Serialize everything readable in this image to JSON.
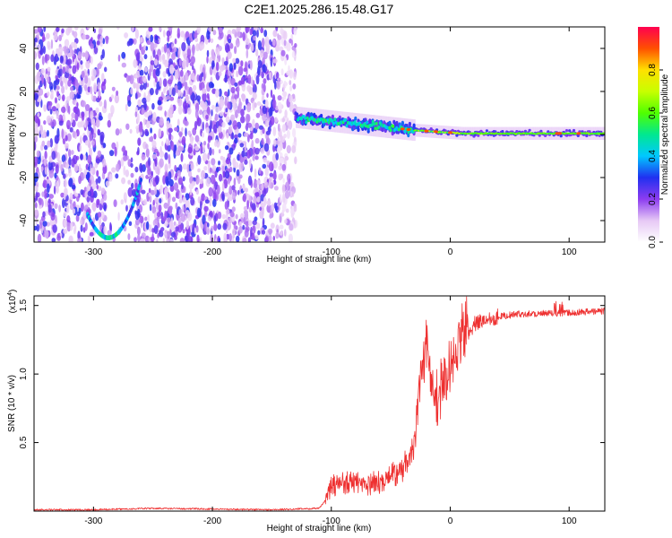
{
  "figure": {
    "title": "C2E1.2025.286.15.48.G17"
  },
  "chart_data": [
    {
      "type": "heatmap",
      "xlabel": "Height of straight line (km)",
      "ylabel": "Frequency (Hz)",
      "xlim": [
        -350,
        130
      ],
      "ylim": [
        -50,
        50
      ],
      "xticks": [
        -300,
        -200,
        -100,
        0,
        100
      ],
      "yticks": [
        -40,
        -20,
        0,
        20,
        40
      ],
      "colorbar": {
        "label": "Normalized spectral amplitude",
        "range": [
          0,
          1
        ],
        "ticks": [
          "0.0",
          "0.2",
          "0.4",
          "0.6",
          "0.8"
        ],
        "tick_values": [
          0.0,
          0.2,
          0.4,
          0.6,
          0.8
        ],
        "stops": [
          {
            "v": 0.0,
            "c": "#ffffff"
          },
          {
            "v": 0.1,
            "c": "#e6c8f5"
          },
          {
            "v": 0.2,
            "c": "#8c3cf0"
          },
          {
            "v": 0.3,
            "c": "#2030f0"
          },
          {
            "v": 0.4,
            "c": "#00c8ff"
          },
          {
            "v": 0.5,
            "c": "#00e890"
          },
          {
            "v": 0.6,
            "c": "#50ff00"
          },
          {
            "v": 0.7,
            "c": "#c8ff00"
          },
          {
            "v": 0.8,
            "c": "#ffe000"
          },
          {
            "v": 0.9,
            "c": "#ff5000"
          },
          {
            "v": 1.0,
            "c": "#ff0050"
          }
        ]
      },
      "features": [
        {
          "name": "noise region",
          "x_range": [
            -350,
            -130
          ],
          "description": "scattered purple spectral amplitude across all frequencies"
        },
        {
          "name": "arc",
          "x_range": [
            -305,
            -260
          ],
          "freq_min": -48,
          "description": "curved trace near bottom"
        },
        {
          "name": "signal band",
          "x_range": [
            -130,
            130
          ],
          "freq_start": 8,
          "freq_end": 0,
          "description": "bright band converging to 0 Hz"
        }
      ]
    },
    {
      "type": "line",
      "xlabel": "Height of straight line (km)",
      "ylabel": "SNR (10 * v/v)",
      "y_multiplier": "(x10^4)",
      "xlim": [
        -350,
        130
      ],
      "ylim": [
        0,
        1.57
      ],
      "xticks": [
        -300,
        -200,
        -100,
        0,
        100
      ],
      "yticks": [
        0.5,
        1.0,
        1.5
      ],
      "ytick_labels": [
        "0.5",
        "1.0",
        "1.5"
      ],
      "color": "#ee3030",
      "series": [
        {
          "name": "SNR",
          "x": [
            -350,
            -300,
            -250,
            -200,
            -150,
            -110,
            -100,
            -90,
            -80,
            -70,
            -60,
            -50,
            -40,
            -30,
            -25,
            -20,
            -15,
            -10,
            -5,
            0,
            5,
            10,
            15,
            20,
            30,
            40,
            50,
            60,
            80,
            100,
            130
          ],
          "values": [
            0.01,
            0.01,
            0.02,
            0.015,
            0.01,
            0.02,
            0.14,
            0.18,
            0.17,
            0.15,
            0.18,
            0.22,
            0.28,
            0.45,
            0.85,
            1.2,
            0.75,
            0.78,
            0.9,
            1.0,
            1.1,
            1.25,
            1.3,
            1.36,
            1.4,
            1.42,
            1.43,
            1.44,
            1.44,
            1.45,
            1.46
          ]
        }
      ]
    }
  ]
}
